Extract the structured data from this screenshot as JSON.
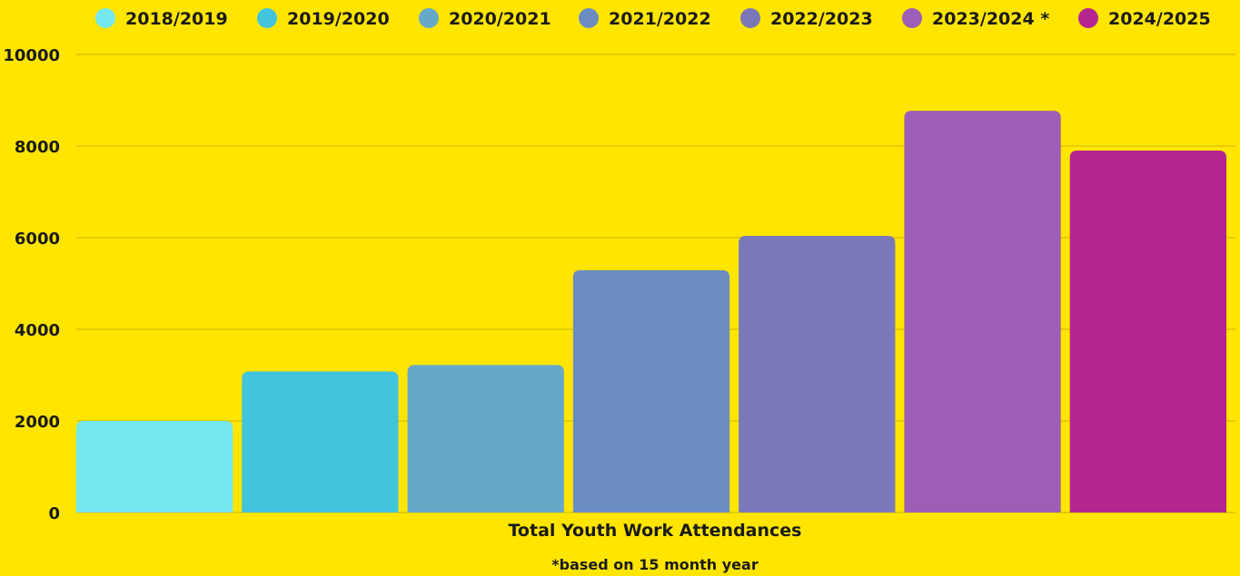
{
  "chart_data": {
    "type": "bar",
    "categories": [
      "Total Youth Work Attendances"
    ],
    "series": [
      {
        "name": "2018/2019",
        "value": 2000,
        "color": "#74E8EE"
      },
      {
        "name": "2019/2020",
        "value": 3080,
        "color": "#42C4DC"
      },
      {
        "name": "2020/2021",
        "value": 3220,
        "color": "#66A8C8"
      },
      {
        "name": "2021/2022",
        "value": 5290,
        "color": "#6A8CC0"
      },
      {
        "name": "2022/2023",
        "value": 6040,
        "color": "#7A78B8"
      },
      {
        "name": "2023/2024 *",
        "value": 8770,
        "color": "#9C5FB5"
      },
      {
        "name": "2024/2025",
        "value": 7900,
        "color": "#B52590"
      }
    ],
    "yticks": [
      0,
      2000,
      4000,
      6000,
      8000,
      10000
    ],
    "ylim": [
      0,
      10000
    ],
    "xlabel": "Total Youth Work Attendances",
    "ylabel": "",
    "title": "",
    "footnote": "*based on 15 month year",
    "legend": "top",
    "grid": true
  },
  "colors": {
    "background": "#FFE500",
    "grid": "#C9B800",
    "text": "#1a1a1a"
  }
}
